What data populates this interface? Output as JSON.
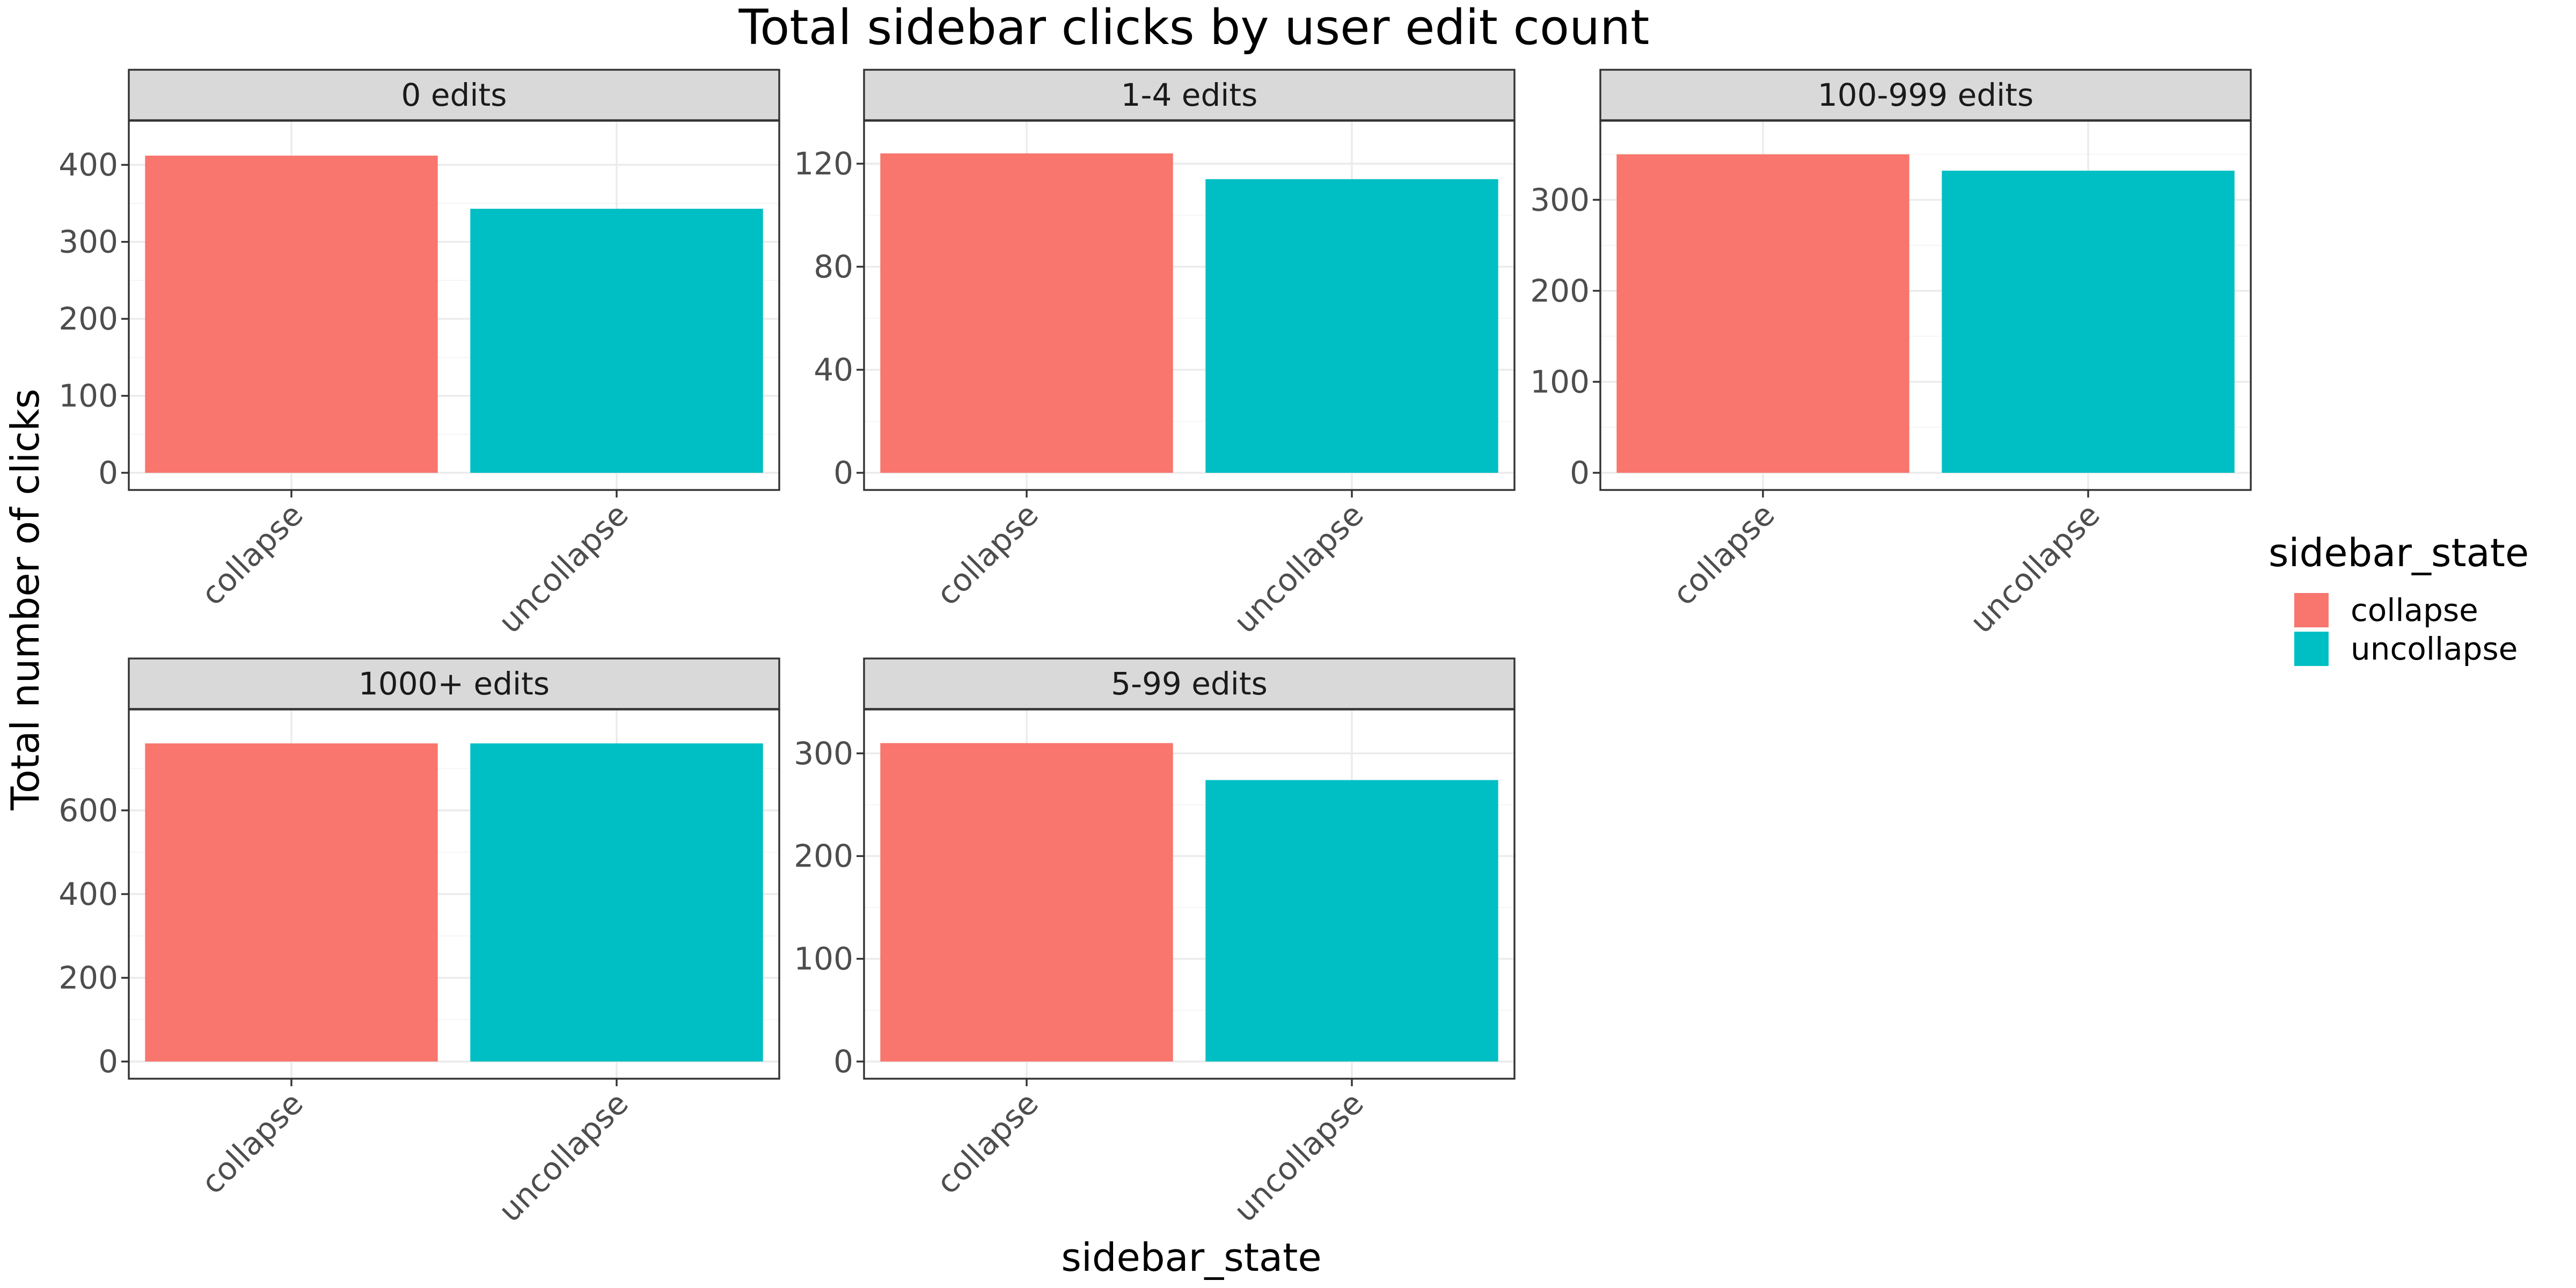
{
  "chart_data": {
    "type": "bar",
    "title": "Total sidebar clicks by user edit count",
    "xlabel": "sidebar_state",
    "ylabel": "Total number of clicks",
    "legend": {
      "title": "sidebar_state",
      "placement": "right",
      "items": [
        {
          "label": "collapse",
          "color": "#F8766D"
        },
        {
          "label": "uncollapse",
          "color": "#00BFC4"
        }
      ]
    },
    "categories": [
      "collapse",
      "uncollapse"
    ],
    "colors": [
      "#F8766D",
      "#00BFC4"
    ],
    "grid": true,
    "facets": [
      {
        "label": "0 edits",
        "values": [
          412,
          343
        ],
        "ylim": [
          0,
          435
        ],
        "yticks": [
          0,
          100,
          200,
          300,
          400
        ]
      },
      {
        "label": "1-4 edits",
        "values": [
          124,
          114
        ],
        "ylim": [
          0,
          130
        ],
        "yticks": [
          0,
          40,
          80,
          120
        ]
      },
      {
        "label": "100-999 edits",
        "values": [
          350,
          332
        ],
        "ylim": [
          0,
          368
        ],
        "yticks": [
          0,
          100,
          200,
          300
        ]
      },
      {
        "label": "1000+ edits",
        "values": [
          760,
          760
        ],
        "ylim": [
          0,
          800
        ],
        "yticks": [
          0,
          200,
          400,
          600
        ]
      },
      {
        "label": "5-99 edits",
        "values": [
          310,
          274
        ],
        "ylim": [
          0,
          326
        ],
        "yticks": [
          0,
          100,
          200,
          300
        ]
      }
    ]
  }
}
